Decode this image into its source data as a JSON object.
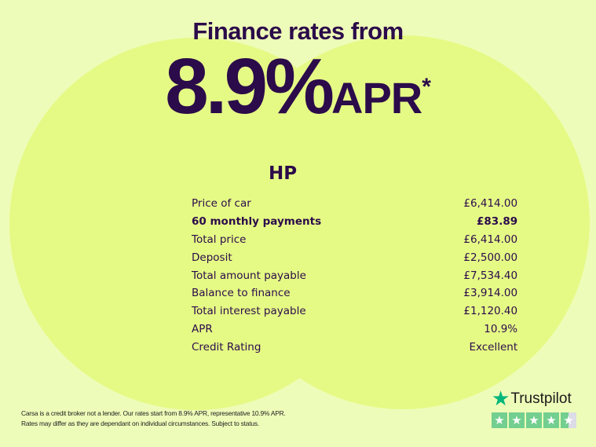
{
  "headline": {
    "line1": "Finance rates from",
    "rate": "8.9%",
    "apr": "APR",
    "asterisk": "*"
  },
  "plan": {
    "title": "HP",
    "rows": [
      {
        "label": "Price of car",
        "value": "£6,414.00",
        "bold": false
      },
      {
        "label": "60 monthly payments",
        "value": "£83.89",
        "bold": true
      },
      {
        "label": "Total price",
        "value": "£6,414.00",
        "bold": false
      },
      {
        "label": "Deposit",
        "value": "£2,500.00",
        "bold": false
      },
      {
        "label": "Total amount payable",
        "value": "£7,534.40",
        "bold": false
      },
      {
        "label": "Balance to finance",
        "value": "£3,914.00",
        "bold": false
      },
      {
        "label": "Total interest payable",
        "value": "£1,120.40",
        "bold": false
      },
      {
        "label": "APR",
        "value": "10.9%",
        "bold": false
      },
      {
        "label": "Credit Rating",
        "value": "Excellent",
        "bold": false
      }
    ]
  },
  "disclaimer": {
    "line1": "Carsa is a credit broker not a lender. Our rates start from 8.9% APR, representative 10.9% APR.",
    "line2": "Rates may differ as they are dependant on individual circumstances. Subject to status."
  },
  "trustpilot": {
    "name": "Trustpilot",
    "rating": 4.5,
    "max": 5,
    "brand_color": "#00b67a"
  },
  "colors": {
    "background": "#eefcb9",
    "circle": "#e5fa85",
    "text": "#2b0b4a"
  }
}
